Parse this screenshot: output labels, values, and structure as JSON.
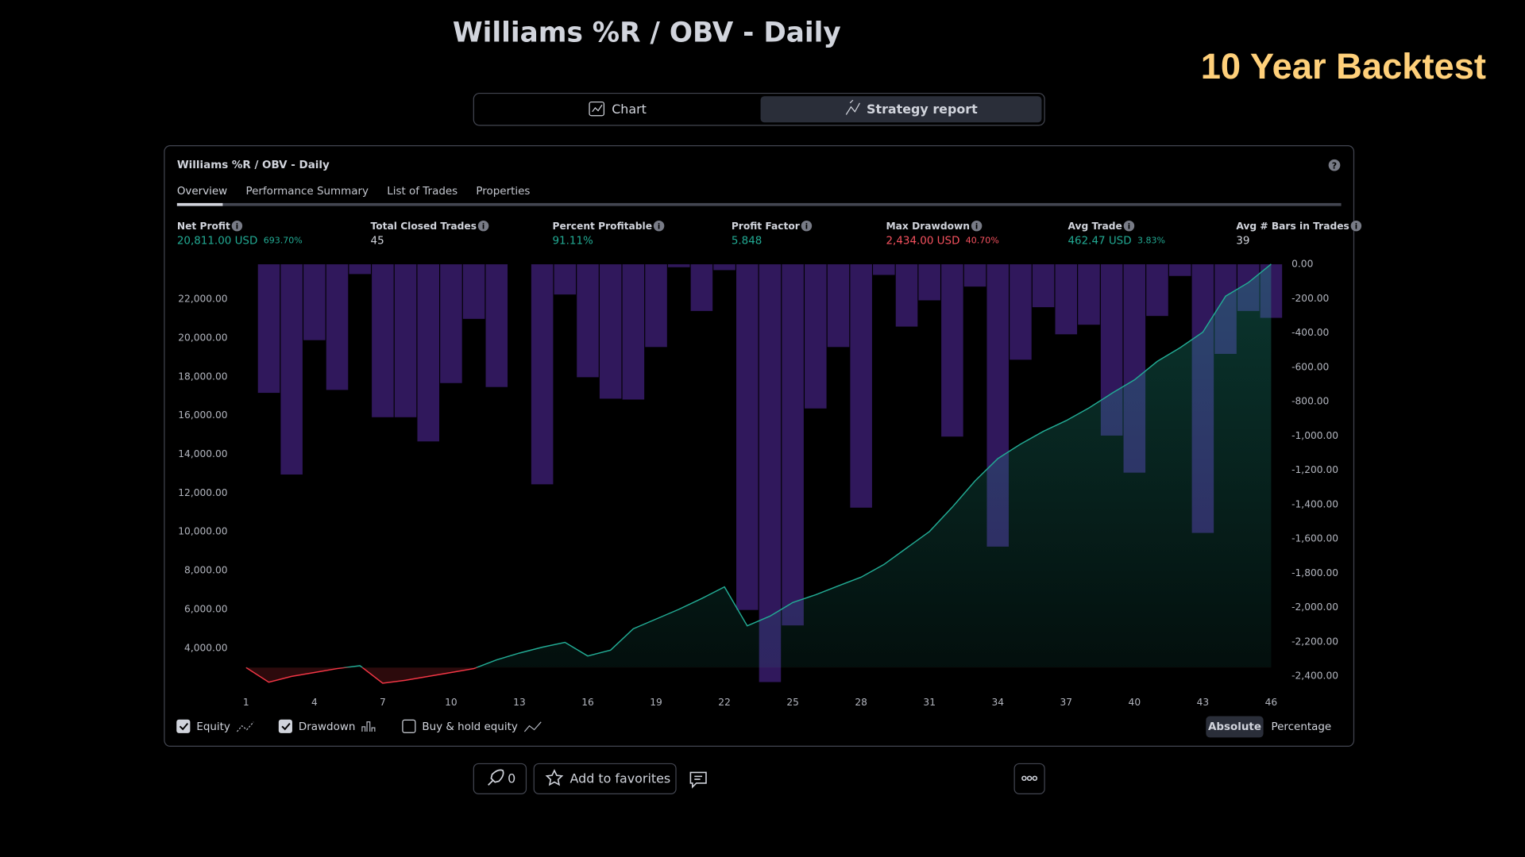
{
  "header": {
    "title": "Williams %R / OBV - Daily",
    "badge": "10 Year Backtest"
  },
  "view_tabs": [
    "Chart",
    "Strategy report"
  ],
  "panel": {
    "title": "Williams %R / OBV - Daily",
    "tabs": [
      "Overview",
      "Performance Summary",
      "List of Trades",
      "Properties"
    ],
    "metrics": [
      {
        "label": "Net Profit",
        "value": "20,811.00 USD",
        "extra": "693.70%"
      },
      {
        "label": "Total Closed Trades",
        "value": "45"
      },
      {
        "label": "Percent Profitable",
        "value": "91.11%"
      },
      {
        "label": "Profit Factor",
        "value": "5.848"
      },
      {
        "label": "Max Drawdown",
        "value": "2,434.00 USD",
        "extra": "40.70%"
      },
      {
        "label": "Avg Trade",
        "value": "462.47 USD",
        "extra": "3.83%"
      },
      {
        "label": "Avg # Bars in Trades",
        "value": "39"
      }
    ],
    "toggles": [
      "Equity",
      "Drawdown",
      "Buy & hold equity"
    ],
    "modes": [
      "Absolute",
      "Percentage"
    ]
  },
  "footer": {
    "boosts": "0",
    "favorites": "Add to favorites"
  },
  "chart_data": {
    "type": "combo",
    "x": [
      1,
      2,
      3,
      4,
      5,
      6,
      7,
      8,
      9,
      10,
      11,
      12,
      13,
      14,
      15,
      16,
      17,
      18,
      19,
      20,
      21,
      22,
      23,
      24,
      25,
      26,
      27,
      28,
      29,
      30,
      31,
      32,
      33,
      34,
      35,
      36,
      37,
      38,
      39,
      40,
      41,
      42,
      43,
      44,
      45,
      46
    ],
    "xlim": [
      1,
      46
    ],
    "xticks": [
      1,
      4,
      7,
      10,
      13,
      16,
      19,
      22,
      25,
      28,
      31,
      34,
      37,
      40,
      43,
      46
    ],
    "ylim": [
      2200,
      23800
    ],
    "yticks": [
      {
        "value": 4000,
        "label": "4,000.00"
      },
      {
        "value": 6000,
        "label": "6,000.00"
      },
      {
        "value": 8000,
        "label": "8,000.00"
      },
      {
        "value": 10000,
        "label": "10,000.00"
      },
      {
        "value": 12000,
        "label": "12,000.00"
      },
      {
        "value": 14000,
        "label": "14,000.00"
      },
      {
        "value": 16000,
        "label": "16,000.00"
      },
      {
        "value": 18000,
        "label": "18,000.00"
      },
      {
        "value": 20000,
        "label": "20,000.00"
      },
      {
        "value": 22000,
        "label": "22,000.00"
      }
    ],
    "y2lim": [
      -2440,
      0
    ],
    "y2ticks": [
      {
        "value": 0,
        "label": "0.00"
      },
      {
        "value": -200,
        "label": "-200.00"
      },
      {
        "value": -400,
        "label": "-400.00"
      },
      {
        "value": -600,
        "label": "-600.00"
      },
      {
        "value": -800,
        "label": "-800.00"
      },
      {
        "value": -1000,
        "label": "-1,000.00"
      },
      {
        "value": -1200,
        "label": "-1,200.00"
      },
      {
        "value": -1400,
        "label": "-1,400.00"
      },
      {
        "value": -1600,
        "label": "-1,600.00"
      },
      {
        "value": -1800,
        "label": "-1,800.00"
      },
      {
        "value": -2000,
        "label": "-2,000.00"
      },
      {
        "value": -2200,
        "label": "-2,200.00"
      },
      {
        "value": -2400,
        "label": "-2,400.00"
      }
    ],
    "series": [
      {
        "name": "Equity",
        "type": "line",
        "color": "#22ab94",
        "loss_color": "#f23645",
        "values": [
          3000,
          2245,
          2545,
          2746,
          2947,
          3097,
          2195,
          2345,
          2545,
          2746,
          2947,
          3398,
          3749,
          4050,
          4301,
          3599,
          3900,
          5003,
          5505,
          6006,
          6558,
          7160,
          5153,
          5655,
          6357,
          6758,
          7210,
          7661,
          8313,
          9165,
          10018,
          11272,
          12626,
          13779,
          14531,
          15183,
          15735,
          16387,
          17139,
          17842,
          18794,
          19496,
          20299,
          22154,
          22857,
          23811
        ]
      },
      {
        "name": "Drawdown",
        "type": "bar",
        "axis": "y2",
        "color": "#7e3ff2",
        "values": [
          0,
          -749,
          -1225,
          -442,
          -732,
          -57,
          -891,
          -891,
          -1032,
          -692,
          -318,
          -715,
          0,
          -1282,
          -176,
          -658,
          -783,
          -788,
          -482,
          -17,
          -272,
          -34,
          -2014,
          -2434,
          -2104,
          -840,
          -482,
          -1418,
          -62,
          -363,
          -210,
          -1004,
          -130,
          -1645,
          -556,
          -250,
          -408,
          -352,
          -998,
          -1214,
          -301,
          -68,
          -1565,
          -522,
          -272,
          -312
        ]
      }
    ]
  }
}
